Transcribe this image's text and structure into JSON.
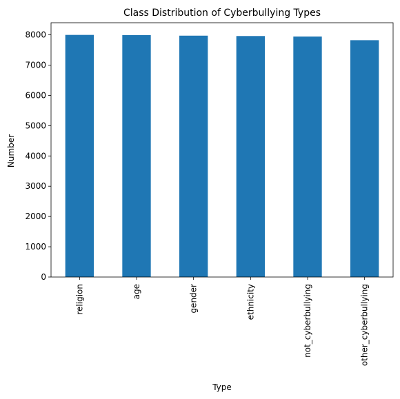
{
  "chart_data": {
    "type": "bar",
    "title": "Class Distribution of Cyberbullying Types",
    "xlabel": "Type",
    "ylabel": "Number",
    "categories": [
      "religion",
      "age",
      "gender",
      "ethnicity",
      "not_cyberbullying",
      "other_cyberbullying"
    ],
    "values": [
      7998,
      7992,
      7973,
      7961,
      7945,
      7823
    ],
    "ylim": [
      0,
      8400
    ],
    "yticks": [
      0,
      1000,
      2000,
      3000,
      4000,
      5000,
      6000,
      7000,
      8000
    ],
    "grid": false,
    "legend": "none",
    "bar_color": "#1f77b4"
  }
}
